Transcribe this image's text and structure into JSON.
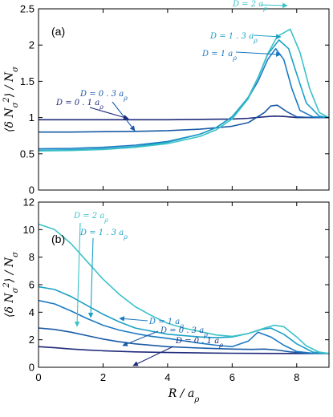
{
  "colors": {
    "D_0_1": "#1f2a7a",
    "D_0_3": "#1a5aa6",
    "D_1": "#1a79c4",
    "D_1_3": "#1ca0c6",
    "D_2": "#3cc2c8"
  },
  "chart_data": [
    {
      "type": "line",
      "panel_label": "(a)",
      "xlabel": "R / a_ρ",
      "ylabel": "⟨δN_σ²⟩ / N_σ",
      "xlim": [
        0,
        9
      ],
      "ylim": [
        0,
        2.5
      ],
      "xticks": [
        "0",
        "2",
        "4",
        "6",
        "8"
      ],
      "yticks": [
        "0",
        "0.5",
        "1",
        "1.5",
        "2",
        "2.5"
      ],
      "grid": false,
      "legend": "none",
      "series": [
        {
          "name": "D = 0.1 a_ρ",
          "color_key": "D_0_1",
          "x": [
            0,
            1,
            2,
            3,
            4,
            5,
            6,
            6.5,
            7,
            7.3,
            7.6,
            8,
            8.5,
            9
          ],
          "y": [
            0.97,
            0.97,
            0.97,
            0.97,
            0.97,
            0.975,
            0.98,
            0.99,
            1.01,
            1.02,
            1.015,
            1.0,
            1.0,
            1.0
          ]
        },
        {
          "name": "D = 0.3 a_ρ",
          "color_key": "D_0_3",
          "x": [
            0,
            1,
            2,
            3,
            4,
            5,
            6,
            6.5,
            7,
            7.2,
            7.4,
            7.7,
            8,
            8.5,
            9
          ],
          "y": [
            0.8,
            0.8,
            0.805,
            0.81,
            0.82,
            0.84,
            0.88,
            0.93,
            1.07,
            1.16,
            1.17,
            1.08,
            1.01,
            1.0,
            1.0
          ]
        },
        {
          "name": "D = 1 a_ρ",
          "color_key": "D_1",
          "x": [
            0,
            1,
            2,
            3,
            4,
            5,
            5.5,
            6,
            6.5,
            6.8,
            7.1,
            7.35,
            7.6,
            7.85,
            8.1,
            8.5,
            9
          ],
          "y": [
            0.57,
            0.575,
            0.59,
            0.62,
            0.67,
            0.77,
            0.86,
            1.01,
            1.27,
            1.5,
            1.8,
            1.95,
            1.8,
            1.4,
            1.1,
            1.01,
            1.0
          ]
        },
        {
          "name": "D = 1.3 a_ρ",
          "color_key": "D_1_3",
          "x": [
            0,
            1,
            2,
            3,
            4,
            5,
            5.5,
            6,
            6.5,
            6.8,
            7.1,
            7.45,
            7.75,
            8.0,
            8.3,
            8.7,
            9
          ],
          "y": [
            0.55,
            0.555,
            0.57,
            0.6,
            0.66,
            0.77,
            0.86,
            1.01,
            1.28,
            1.55,
            1.87,
            2.07,
            1.95,
            1.6,
            1.2,
            1.02,
            1.0
          ]
        },
        {
          "name": "D = 2 a_ρ",
          "color_key": "D_2",
          "x": [
            0,
            1,
            2,
            3,
            4,
            5,
            5.5,
            6,
            6.5,
            6.8,
            7.1,
            7.4,
            7.8,
            8.1,
            8.4,
            8.7,
            9
          ],
          "y": [
            0.54,
            0.545,
            0.56,
            0.59,
            0.64,
            0.74,
            0.83,
            0.98,
            1.26,
            1.55,
            1.88,
            2.12,
            2.22,
            1.9,
            1.4,
            1.07,
            1.0
          ]
        }
      ],
      "annotations": [
        {
          "text": "D = 2 a_ρ",
          "series": "D_2"
        },
        {
          "text": "D = 1 . 3 a_ρ",
          "series": "D_1_3"
        },
        {
          "text": "D = 1 a_ρ",
          "series": "D_1"
        },
        {
          "text": "D = 0 . 3 a_ρ",
          "series": "D_0_3"
        },
        {
          "text": "D = 0 . 1 a_ρ",
          "series": "D_0_1"
        }
      ]
    },
    {
      "type": "line",
      "panel_label": "(b)",
      "xlabel": "R / a_ρ",
      "ylabel": "⟨δN_σ²⟩ / N_σ",
      "xlim": [
        0,
        9
      ],
      "ylim": [
        0,
        12
      ],
      "xticks": [
        "0",
        "2",
        "4",
        "6",
        "8"
      ],
      "yticks": [
        "0",
        "2",
        "4",
        "6",
        "8",
        "10",
        "12"
      ],
      "grid": false,
      "legend": "none",
      "series": [
        {
          "name": "D = 0.1 a_ρ",
          "color_key": "D_0_1",
          "x": [
            0,
            0.5,
            1,
            1.5,
            2,
            3,
            4,
            5,
            6,
            7,
            8,
            9
          ],
          "y": [
            1.5,
            1.42,
            1.33,
            1.26,
            1.2,
            1.12,
            1.07,
            1.04,
            1.02,
            1.01,
            1.0,
            1.0
          ]
        },
        {
          "name": "D = 0.3 a_ρ",
          "color_key": "D_0_3",
          "x": [
            0,
            0.5,
            1,
            1.5,
            2,
            2.5,
            3,
            4,
            5,
            6,
            6.6,
            7.0,
            7.4,
            7.8,
            8.3,
            9
          ],
          "y": [
            2.85,
            2.75,
            2.55,
            2.3,
            2.05,
            1.85,
            1.7,
            1.5,
            1.4,
            1.32,
            1.3,
            1.32,
            1.25,
            1.12,
            1.03,
            1.0
          ]
        },
        {
          "name": "D = 1 a_ρ",
          "color_key": "D_1",
          "x": [
            0,
            0.5,
            1,
            1.5,
            2,
            2.5,
            3,
            3.5,
            4,
            5,
            5.5,
            6,
            6.5,
            6.8,
            7.2,
            7.6,
            8,
            8.5,
            9
          ],
          "y": [
            4.85,
            4.6,
            4.1,
            3.55,
            3.05,
            2.7,
            2.45,
            2.25,
            2.1,
            1.75,
            1.6,
            1.5,
            1.9,
            2.55,
            2.2,
            1.6,
            1.15,
            1.02,
            1.0
          ]
        },
        {
          "name": "D = 1.3 a_ρ",
          "color_key": "D_1_3",
          "x": [
            0,
            0.5,
            1,
            1.5,
            2,
            2.5,
            3,
            4,
            5,
            5.5,
            6,
            6.5,
            6.9,
            7.2,
            7.6,
            8,
            8.5,
            9
          ],
          "y": [
            5.85,
            5.65,
            5.15,
            4.5,
            3.85,
            3.3,
            2.85,
            2.4,
            2.2,
            2.15,
            2.2,
            2.45,
            2.75,
            2.85,
            2.4,
            1.7,
            1.1,
            1.0
          ]
        },
        {
          "name": "D = 2 a_ρ",
          "color_key": "D_2",
          "x": [
            0,
            0.5,
            1,
            1.5,
            2,
            2.5,
            3,
            3.5,
            4,
            4.5,
            5,
            5.5,
            6,
            6.5,
            7,
            7.3,
            7.6,
            8,
            8.3,
            8.7,
            9
          ],
          "y": [
            10.4,
            10.0,
            9.0,
            7.7,
            6.4,
            5.3,
            4.4,
            3.75,
            3.2,
            2.85,
            2.6,
            2.35,
            2.25,
            2.45,
            2.85,
            3.05,
            2.95,
            2.2,
            1.55,
            1.1,
            1.0
          ]
        }
      ],
      "annotations": [
        {
          "text": "D = 2 a_ρ",
          "series": "D_2"
        },
        {
          "text": "D = 1 . 3 a_ρ",
          "series": "D_1_3"
        },
        {
          "text": "D = 1 a_ρ",
          "series": "D_1"
        },
        {
          "text": "D = 0 . 3 a_ρ",
          "series": "D_0_3"
        },
        {
          "text": "D = 0 . 1 a_ρ",
          "series": "D_0_1"
        }
      ]
    }
  ]
}
